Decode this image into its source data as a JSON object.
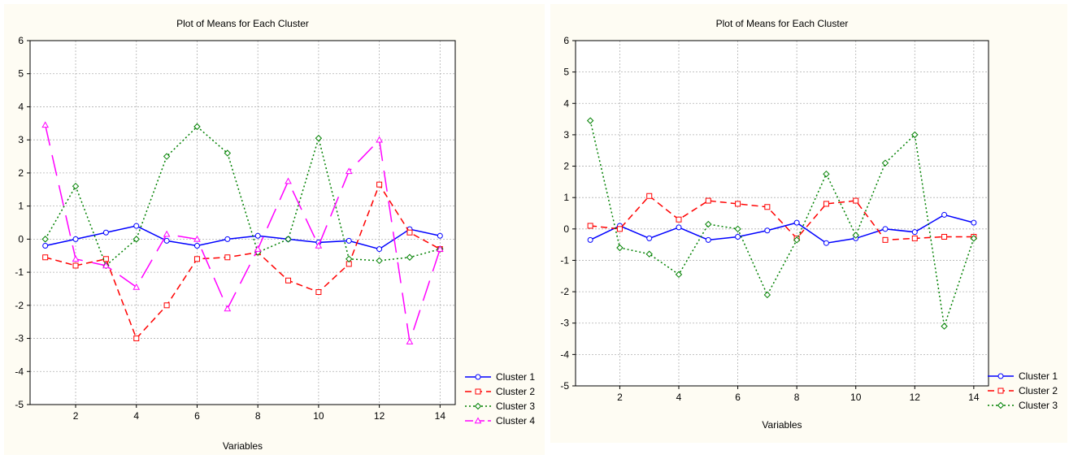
{
  "chart_data": [
    {
      "type": "line",
      "title": "Plot of Means for Each Cluster",
      "xlabel": "Variables",
      "ylabel": "",
      "ylim": [
        -5,
        6
      ],
      "xlim": [
        0.5,
        14.5
      ],
      "x": [
        1,
        2,
        3,
        4,
        5,
        6,
        7,
        8,
        9,
        10,
        11,
        12,
        13,
        14
      ],
      "x_ticks": [
        "2",
        "4",
        "6",
        "8",
        "10",
        "12",
        "14"
      ],
      "y_ticks": [
        "-5",
        "-4",
        "-3",
        "-2",
        "-1",
        "0",
        "1",
        "2",
        "3",
        "4",
        "5",
        "6"
      ],
      "grid": true,
      "legend_position": "bottom-right",
      "series": [
        {
          "name": "Cluster  1",
          "color": "#0000ff",
          "style": "solid",
          "marker": "circle",
          "values": [
            -0.2,
            0.0,
            0.2,
            0.4,
            -0.05,
            -0.2,
            0.0,
            0.1,
            0.0,
            -0.1,
            -0.05,
            -0.3,
            0.3,
            0.1
          ]
        },
        {
          "name": "Cluster  2",
          "color": "#ff0000",
          "style": "dashed",
          "marker": "square",
          "values": [
            -0.55,
            -0.8,
            -0.6,
            -3.0,
            -2.0,
            -0.6,
            -0.55,
            -0.4,
            -1.25,
            -1.6,
            -0.75,
            1.65,
            0.2,
            -0.3
          ]
        },
        {
          "name": "Cluster  3",
          "color": "#008000",
          "style": "dotted",
          "marker": "diamond",
          "values": [
            0.0,
            1.6,
            -0.8,
            0.0,
            2.5,
            3.4,
            2.6,
            -0.4,
            0.0,
            3.05,
            -0.6,
            -0.65,
            -0.55,
            -0.3
          ]
        },
        {
          "name": "Cluster  4",
          "color": "#ff00ff",
          "style": "longdash",
          "marker": "triangle",
          "values": [
            3.45,
            -0.6,
            -0.8,
            -1.45,
            0.15,
            0.0,
            -2.1,
            -0.3,
            1.75,
            -0.2,
            2.05,
            3.0,
            -3.1,
            -0.3
          ]
        }
      ]
    },
    {
      "type": "line",
      "title": "Plot of Means for Each Cluster",
      "xlabel": "Variables",
      "ylabel": "",
      "ylim": [
        -5,
        6
      ],
      "xlim": [
        0.5,
        14.5
      ],
      "x": [
        1,
        2,
        3,
        4,
        5,
        6,
        7,
        8,
        9,
        10,
        11,
        12,
        13,
        14
      ],
      "x_ticks": [
        "2",
        "4",
        "6",
        "8",
        "10",
        "12",
        "14"
      ],
      "y_ticks": [
        "-5",
        "-4",
        "-3",
        "-2",
        "-1",
        "0",
        "1",
        "2",
        "3",
        "4",
        "5",
        "6"
      ],
      "grid": true,
      "legend_position": "bottom-right",
      "series": [
        {
          "name": "Cluster  1",
          "color": "#0000ff",
          "style": "solid",
          "marker": "circle",
          "values": [
            -0.35,
            0.1,
            -0.3,
            0.05,
            -0.35,
            -0.25,
            -0.05,
            0.2,
            -0.45,
            -0.3,
            0.0,
            -0.1,
            0.45,
            0.2
          ]
        },
        {
          "name": "Cluster  2",
          "color": "#ff0000",
          "style": "dashed",
          "marker": "square",
          "values": [
            0.1,
            0.0,
            1.05,
            0.3,
            0.9,
            0.8,
            0.7,
            -0.3,
            0.8,
            0.9,
            -0.35,
            -0.3,
            -0.25,
            -0.25
          ]
        },
        {
          "name": "Cluster  3",
          "color": "#008000",
          "style": "dotted",
          "marker": "diamond",
          "values": [
            3.45,
            -0.6,
            -0.8,
            -1.45,
            0.15,
            0.0,
            -2.1,
            -0.35,
            1.75,
            -0.2,
            2.1,
            3.0,
            -3.1,
            -0.3
          ]
        }
      ]
    }
  ]
}
